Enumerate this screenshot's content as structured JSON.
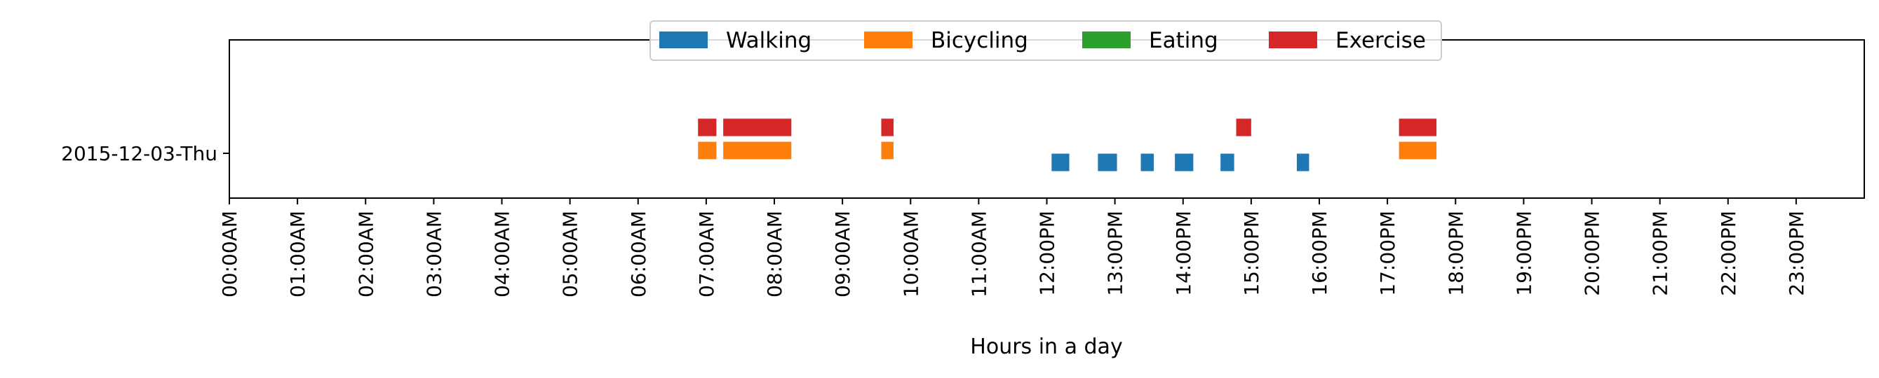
{
  "chart_data": {
    "type": "broken_barh",
    "title": "",
    "xlabel": "Hours in a day",
    "ylabel": "",
    "xlim": [
      0,
      24
    ],
    "x_ticks": [
      {
        "value": 0,
        "label": "00:00AM"
      },
      {
        "value": 1,
        "label": "01:00AM"
      },
      {
        "value": 2,
        "label": "02:00AM"
      },
      {
        "value": 3,
        "label": "03:00AM"
      },
      {
        "value": 4,
        "label": "04:00AM"
      },
      {
        "value": 5,
        "label": "05:00AM"
      },
      {
        "value": 6,
        "label": "06:00AM"
      },
      {
        "value": 7,
        "label": "07:00AM"
      },
      {
        "value": 8,
        "label": "08:00AM"
      },
      {
        "value": 9,
        "label": "09:00AM"
      },
      {
        "value": 10,
        "label": "10:00AM"
      },
      {
        "value": 11,
        "label": "11:00AM"
      },
      {
        "value": 12,
        "label": "12:00PM"
      },
      {
        "value": 13,
        "label": "13:00PM"
      },
      {
        "value": 14,
        "label": "14:00PM"
      },
      {
        "value": 15,
        "label": "15:00PM"
      },
      {
        "value": 16,
        "label": "16:00PM"
      },
      {
        "value": 17,
        "label": "17:00PM"
      },
      {
        "value": 18,
        "label": "18:00PM"
      },
      {
        "value": 19,
        "label": "19:00PM"
      },
      {
        "value": 20,
        "label": "20:00PM"
      },
      {
        "value": 21,
        "label": "21:00PM"
      },
      {
        "value": 22,
        "label": "22:00PM"
      },
      {
        "value": 23,
        "label": "23:00PM"
      }
    ],
    "y_categories": [
      "2015-12-03-Thu"
    ],
    "legend": {
      "placement": "top-center",
      "ncol": 4
    },
    "series": [
      {
        "name": "Walking",
        "color": "#1f77b4",
        "intervals": [
          {
            "start": 12.07,
            "end": 12.33
          },
          {
            "start": 12.75,
            "end": 13.03
          },
          {
            "start": 13.38,
            "end": 13.57
          },
          {
            "start": 13.88,
            "end": 14.15
          },
          {
            "start": 14.55,
            "end": 14.75
          },
          {
            "start": 15.67,
            "end": 15.85
          }
        ]
      },
      {
        "name": "Bicycling",
        "color": "#ff7f0e",
        "intervals": [
          {
            "start": 6.88,
            "end": 7.15
          },
          {
            "start": 7.25,
            "end": 8.25
          },
          {
            "start": 9.57,
            "end": 9.75
          },
          {
            "start": 17.17,
            "end": 17.72
          }
        ]
      },
      {
        "name": "Eating",
        "color": "#2ca02c",
        "intervals": []
      },
      {
        "name": "Exercise",
        "color": "#d62728",
        "intervals": [
          {
            "start": 6.88,
            "end": 7.15
          },
          {
            "start": 7.25,
            "end": 8.25
          },
          {
            "start": 9.57,
            "end": 9.75
          },
          {
            "start": 14.78,
            "end": 15.0
          },
          {
            "start": 17.17,
            "end": 17.72
          }
        ]
      }
    ]
  }
}
